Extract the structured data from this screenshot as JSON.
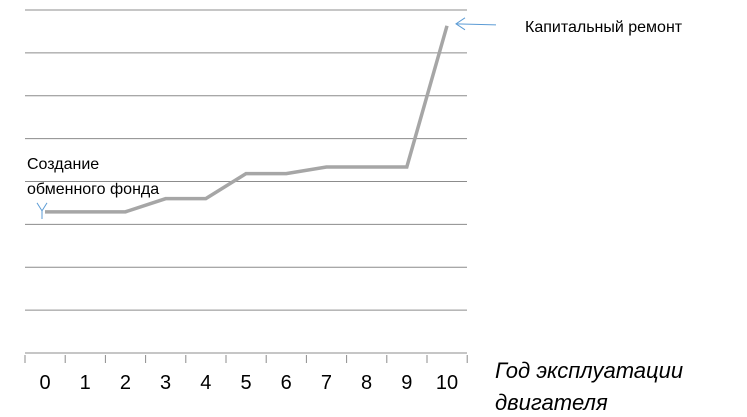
{
  "chart_data": {
    "type": "line",
    "title": "",
    "xlabel": "Год эксплуатации двигателя",
    "xlabel_lines": [
      "Год эксплуатации",
      "двигателя"
    ],
    "ylabel": "",
    "x": [
      0,
      1,
      2,
      3,
      4,
      5,
      6,
      7,
      8,
      9,
      10
    ],
    "categories": [
      "0",
      "1",
      "2",
      "3",
      "4",
      "5",
      "6",
      "7",
      "8",
      "9",
      "10"
    ],
    "series": [
      {
        "values": [
          2.35,
          2.35,
          2.35,
          2.85,
          2.85,
          3.8,
          3.8,
          4.05,
          4.05,
          4.05,
          9.4
        ],
        "color": "#a6a6a6"
      }
    ],
    "ylim": [
      -3,
      10
    ],
    "y_gridlines": 9,
    "grid": true,
    "legend": "none",
    "annotations": [
      {
        "lines": [
          "Создание",
          "обменного фонда"
        ],
        "points_to_x": 0,
        "arrow": "down",
        "arrow_color": "#5b9bd5"
      },
      {
        "lines": [
          "Капитальный ремонт"
        ],
        "points_to_x": 10,
        "arrow": "left",
        "arrow_color": "#5b9bd5"
      }
    ]
  }
}
